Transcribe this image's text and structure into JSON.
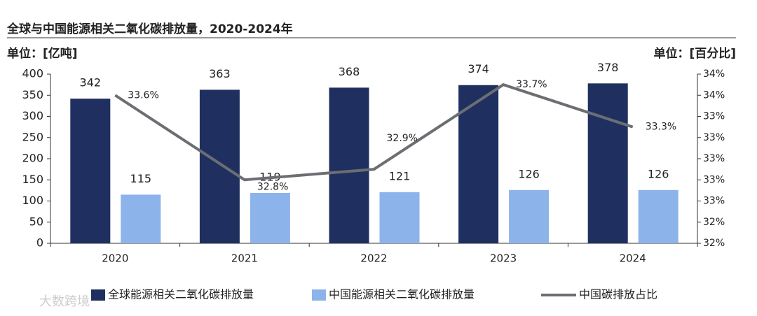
{
  "chart_data": {
    "type": "bar_line",
    "title": "全球与中国能源相关二氧化碳排放量，2020-2024年",
    "y_unit": "单位：[亿吨]",
    "y2_unit": "单位：[百分比]",
    "watermark": "大数跨境",
    "categories": [
      "2020",
      "2021",
      "2022",
      "2023",
      "2024"
    ],
    "series": [
      {
        "name": "全球能源相关二氧化碳排放量",
        "type": "bar",
        "color": "#1f3060",
        "values": [
          342,
          363,
          368,
          374,
          378
        ]
      },
      {
        "name": "中国能源相关二氧化碳排放量",
        "type": "bar",
        "color": "#8db4ea",
        "values": [
          115,
          119,
          121,
          126,
          126
        ]
      },
      {
        "name": "中国碳排放占比",
        "type": "line",
        "axis": "y2",
        "color": "#6b6e72",
        "values": [
          33.6,
          32.8,
          32.9,
          33.7,
          33.3
        ],
        "value_labels": [
          "33.6%",
          "32.8%",
          "32.9%",
          "33.7%",
          "33.3%"
        ]
      }
    ],
    "ylim": [
      0,
      400
    ],
    "yticks": [
      0,
      50,
      100,
      150,
      200,
      250,
      300,
      350,
      400
    ],
    "y2lim": [
      32.2,
      33.8
    ],
    "y2ticks": [
      {
        "value": 32.2,
        "label": "32%"
      },
      {
        "value": 32.4,
        "label": "32%"
      },
      {
        "value": 32.6,
        "label": "33%"
      },
      {
        "value": 32.8,
        "label": "33%"
      },
      {
        "value": 33.0,
        "label": "33%"
      },
      {
        "value": 33.2,
        "label": "33%"
      },
      {
        "value": 33.4,
        "label": "33%"
      },
      {
        "value": 33.6,
        "label": "34%"
      },
      {
        "value": 33.8,
        "label": "34%"
      }
    ],
    "legend": "bottom"
  }
}
